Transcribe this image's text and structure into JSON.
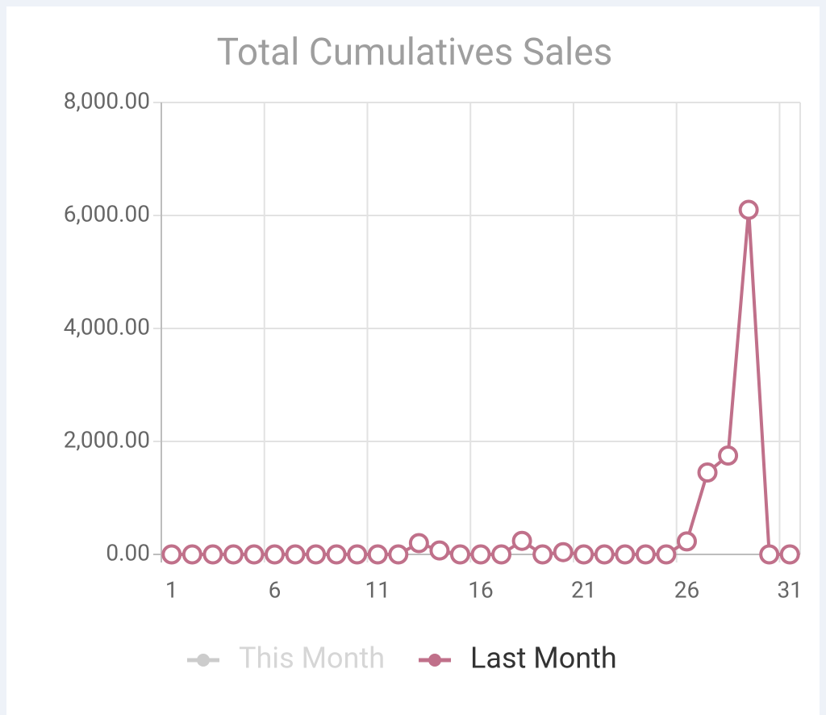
{
  "chart_data": {
    "type": "line",
    "title": "Total Cumulatives Sales",
    "categories": [
      "1",
      null,
      null,
      null,
      null,
      "6",
      null,
      null,
      null,
      null,
      "11",
      null,
      null,
      null,
      null,
      "16",
      null,
      null,
      null,
      null,
      "21",
      null,
      null,
      null,
      null,
      "26",
      null,
      null,
      null,
      null,
      "31"
    ],
    "series": [
      {
        "name": "This Month",
        "color": "#cccccc",
        "hidden": true,
        "values": [
          null,
          null,
          null,
          null,
          null,
          null,
          null,
          null,
          null,
          null,
          null,
          null,
          null,
          null,
          null,
          null,
          null,
          null,
          null,
          null,
          null,
          null,
          null,
          null,
          null,
          null,
          null,
          null,
          null,
          null,
          null
        ]
      },
      {
        "name": "Last Month",
        "color": "#c0708a",
        "hidden": false,
        "values": [
          0,
          0,
          0,
          0,
          0,
          0,
          0,
          0,
          0,
          0,
          0,
          0,
          200,
          70,
          0,
          0,
          0,
          240,
          0,
          40,
          0,
          0,
          0,
          0,
          0,
          230,
          1450,
          1750,
          6100,
          0,
          0
        ]
      }
    ],
    "ylim": [
      0,
      8000
    ],
    "yticks": [
      {
        "value": 0,
        "label": "0.00"
      },
      {
        "value": 2000,
        "label": "2,000.00"
      },
      {
        "value": 4000,
        "label": "4,000.00"
      },
      {
        "value": 6000,
        "label": "6,000.00"
      },
      {
        "value": 8000,
        "label": "8,000.00"
      }
    ],
    "grid": true,
    "legend": "bottom"
  }
}
